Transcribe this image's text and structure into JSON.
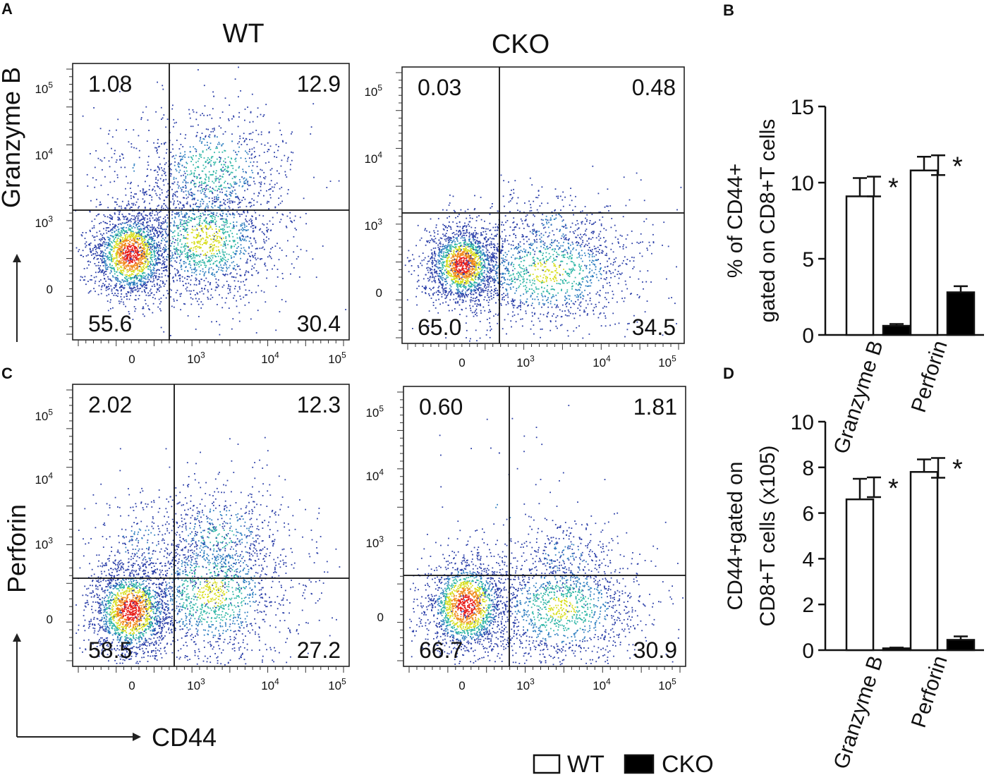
{
  "panel_letters": {
    "a": "A",
    "b": "B",
    "c": "C",
    "d": "D"
  },
  "column_titles": {
    "wt": "WT",
    "cko": "CKO"
  },
  "flow_axis_labels": {
    "granzyme": "Granzyme B",
    "perforin": "Perforin",
    "cd44": "CD44"
  },
  "legend": {
    "wt": "WT",
    "cko": "CKO"
  },
  "colors": {
    "wt_fill": "#ffffff",
    "cko_fill": "#000000",
    "density_low": "#2b3fa8",
    "density_mid": "#2fb6a6",
    "density_high": "#e6e020",
    "density_peak": "#e8201c"
  },
  "chart_data": [
    {
      "id": "flow-A-WT",
      "type": "scatter",
      "title": "WT",
      "xlabel": "CD44",
      "ylabel": "Granzyme B",
      "x_ticks": [
        "0",
        "10^3",
        "10^4",
        "10^5"
      ],
      "y_ticks": [
        "0",
        "10^3",
        "10^4",
        "10^5"
      ],
      "quadrants": {
        "upper_left": "1.08",
        "upper_right": "12.9",
        "lower_left": "55.6",
        "lower_right": "30.4"
      }
    },
    {
      "id": "flow-A-CKO",
      "type": "scatter",
      "title": "CKO",
      "xlabel": "CD44",
      "ylabel": "Granzyme B",
      "x_ticks": [
        "0",
        "10^3",
        "10^4",
        "10^5"
      ],
      "y_ticks": [
        "0",
        "10^3",
        "10^4",
        "10^5"
      ],
      "quadrants": {
        "upper_left": "0.03",
        "upper_right": "0.48",
        "lower_left": "65.0",
        "lower_right": "34.5"
      }
    },
    {
      "id": "flow-C-WT",
      "type": "scatter",
      "title": "WT",
      "xlabel": "CD44",
      "ylabel": "Perforin",
      "x_ticks": [
        "0",
        "10^3",
        "10^4",
        "10^5"
      ],
      "y_ticks": [
        "0",
        "10^3",
        "10^4",
        "10^5"
      ],
      "quadrants": {
        "upper_left": "2.02",
        "upper_right": "12.3",
        "lower_left": "58.5",
        "lower_right": "27.2"
      }
    },
    {
      "id": "flow-C-CKO",
      "type": "scatter",
      "title": "CKO",
      "xlabel": "CD44",
      "ylabel": "Perforin",
      "x_ticks": [
        "0",
        "10^3",
        "10^4",
        "10^5"
      ],
      "y_ticks": [
        "0",
        "10^3",
        "10^4",
        "10^5"
      ],
      "quadrants": {
        "upper_left": "0.60",
        "upper_right": "1.81",
        "lower_left": "66.7",
        "lower_right": "30.9"
      }
    },
    {
      "id": "bar-B",
      "type": "bar",
      "ylabel_line1": "% of CD44+",
      "ylabel_line2": "gated on CD8+T cells",
      "ylim": [
        0,
        15
      ],
      "y_ticks": [
        0,
        5,
        10,
        15
      ],
      "categories": [
        "Granzyme B",
        "Perforin"
      ],
      "series": [
        {
          "name": "WT",
          "values": [
            9.1,
            10.8
          ],
          "errors": [
            1.2,
            0.9
          ]
        },
        {
          "name": "CKO",
          "values": [
            0.6,
            2.8
          ],
          "errors": [
            0.12,
            0.4
          ]
        }
      ],
      "significance": [
        "*",
        "*"
      ]
    },
    {
      "id": "bar-D",
      "type": "bar",
      "ylabel_line1": "CD44+gated on",
      "ylabel_line2": "CD8+T cells (x105)",
      "ylim": [
        0,
        10
      ],
      "y_ticks": [
        0,
        2,
        4,
        6,
        8,
        10
      ],
      "categories": [
        "Granzyme B",
        "Perforin"
      ],
      "series": [
        {
          "name": "WT",
          "values": [
            6.6,
            7.8
          ],
          "errors": [
            0.9,
            0.55
          ]
        },
        {
          "name": "CKO",
          "values": [
            0.08,
            0.45
          ],
          "errors": [
            0.03,
            0.15
          ]
        }
      ],
      "significance": [
        "*",
        "*"
      ]
    }
  ]
}
